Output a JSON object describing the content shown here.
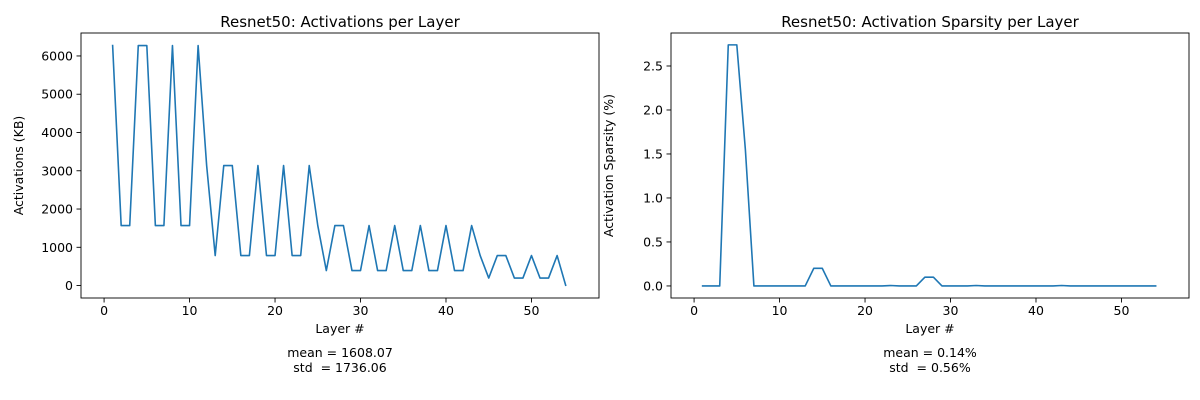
{
  "chart_data": [
    {
      "type": "line",
      "title": "Resnet50: Activations per Layer",
      "xlabel": "Layer #",
      "ylabel": "Activations (KB)",
      "xlim": [
        -2.7,
        57.9
      ],
      "ylim": [
        -325,
        6600
      ],
      "xticks": [
        0,
        10,
        20,
        30,
        40,
        50
      ],
      "yticks": [
        0,
        1000,
        2000,
        3000,
        4000,
        5000,
        6000
      ],
      "ytick_labels": [
        "0",
        "1000",
        "2000",
        "3000",
        "4000",
        "5000",
        "6000"
      ],
      "grid": false,
      "color": "#1f77b4",
      "annotation": [
        "mean = 1608.07",
        "std  = 1736.06"
      ],
      "x": [
        1,
        2,
        3,
        4,
        5,
        6,
        7,
        8,
        9,
        10,
        11,
        12,
        13,
        14,
        15,
        16,
        17,
        18,
        19,
        20,
        21,
        22,
        23,
        24,
        25,
        26,
        27,
        28,
        29,
        30,
        31,
        32,
        33,
        34,
        35,
        36,
        37,
        38,
        39,
        40,
        41,
        42,
        43,
        44,
        45,
        46,
        47,
        48,
        49,
        50,
        51,
        52,
        53,
        54
      ],
      "values": [
        6272,
        1568,
        1568,
        6272,
        6272,
        1568,
        1568,
        6272,
        1568,
        1568,
        6272,
        3136,
        784,
        3136,
        3136,
        784,
        784,
        3136,
        784,
        784,
        3136,
        784,
        784,
        3136,
        1568,
        392,
        1568,
        1568,
        392,
        392,
        1568,
        392,
        392,
        1568,
        392,
        392,
        1568,
        392,
        392,
        1568,
        392,
        392,
        1568,
        784,
        196,
        784,
        784,
        196,
        196,
        784,
        196,
        196,
        784,
        8
      ]
    },
    {
      "type": "line",
      "title": "Resnet50: Activation Sparsity per Layer",
      "xlabel": "Layer #",
      "ylabel": "Activation Sparsity (%)",
      "xlim": [
        -2.7,
        57.9
      ],
      "ylim": [
        -0.137,
        2.875
      ],
      "xticks": [
        0,
        10,
        20,
        30,
        40,
        50
      ],
      "yticks": [
        0,
        0.5,
        1,
        1.5,
        2,
        2.5
      ],
      "ytick_labels": [
        "0.0",
        "0.5",
        "1.0",
        "1.5",
        "2.0",
        "2.5"
      ],
      "grid": false,
      "color": "#1f77b4",
      "annotation": [
        "mean = 0.14%",
        "std  = 0.56%"
      ],
      "x": [
        1,
        2,
        3,
        4,
        5,
        6,
        7,
        8,
        9,
        10,
        11,
        12,
        13,
        14,
        15,
        16,
        17,
        18,
        19,
        20,
        21,
        22,
        23,
        24,
        25,
        26,
        27,
        28,
        29,
        30,
        31,
        32,
        33,
        34,
        35,
        36,
        37,
        38,
        39,
        40,
        41,
        42,
        43,
        44,
        45,
        46,
        47,
        48,
        49,
        50,
        51,
        52,
        53,
        54
      ],
      "values": [
        0,
        0,
        0,
        2.74,
        2.74,
        1.55,
        0,
        0,
        0,
        0,
        0,
        0,
        0,
        0.2,
        0.2,
        0,
        0,
        0,
        0,
        0,
        0,
        0,
        0.005,
        0,
        0,
        0,
        0.1,
        0.1,
        0,
        0,
        0,
        0,
        0.005,
        0,
        0,
        0,
        0,
        0,
        0,
        0,
        0,
        0,
        0.005,
        0,
        0,
        0,
        0,
        0,
        0,
        0,
        0,
        0,
        0,
        0
      ]
    }
  ]
}
